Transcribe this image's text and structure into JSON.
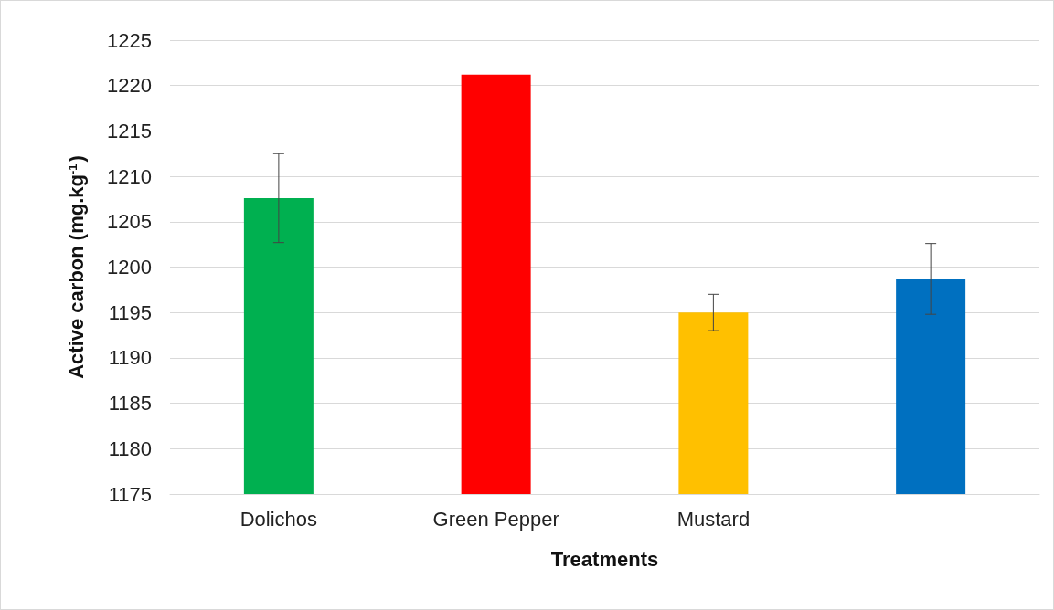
{
  "chart_data": {
    "type": "bar",
    "xlabel": "Treatments",
    "ylabel": "Active carbon (mg.kg$^{-1}$)",
    "categories": [
      "Dolichos",
      "Green Pepper",
      "Mustard",
      null
    ],
    "values": [
      1207.6,
      1221.2,
      1195.0,
      1198.7
    ],
    "colors": [
      "#00b050",
      "#ff0000",
      "#ffc000",
      "#0070c0"
    ],
    "errors": [
      4.9,
      null,
      2.0,
      3.9
    ],
    "ylim": [
      1175,
      1225
    ],
    "yticks": [
      1175,
      1180,
      1185,
      1190,
      1195,
      1200,
      1205,
      1210,
      1215,
      1220,
      1225
    ],
    "grid": "y"
  }
}
